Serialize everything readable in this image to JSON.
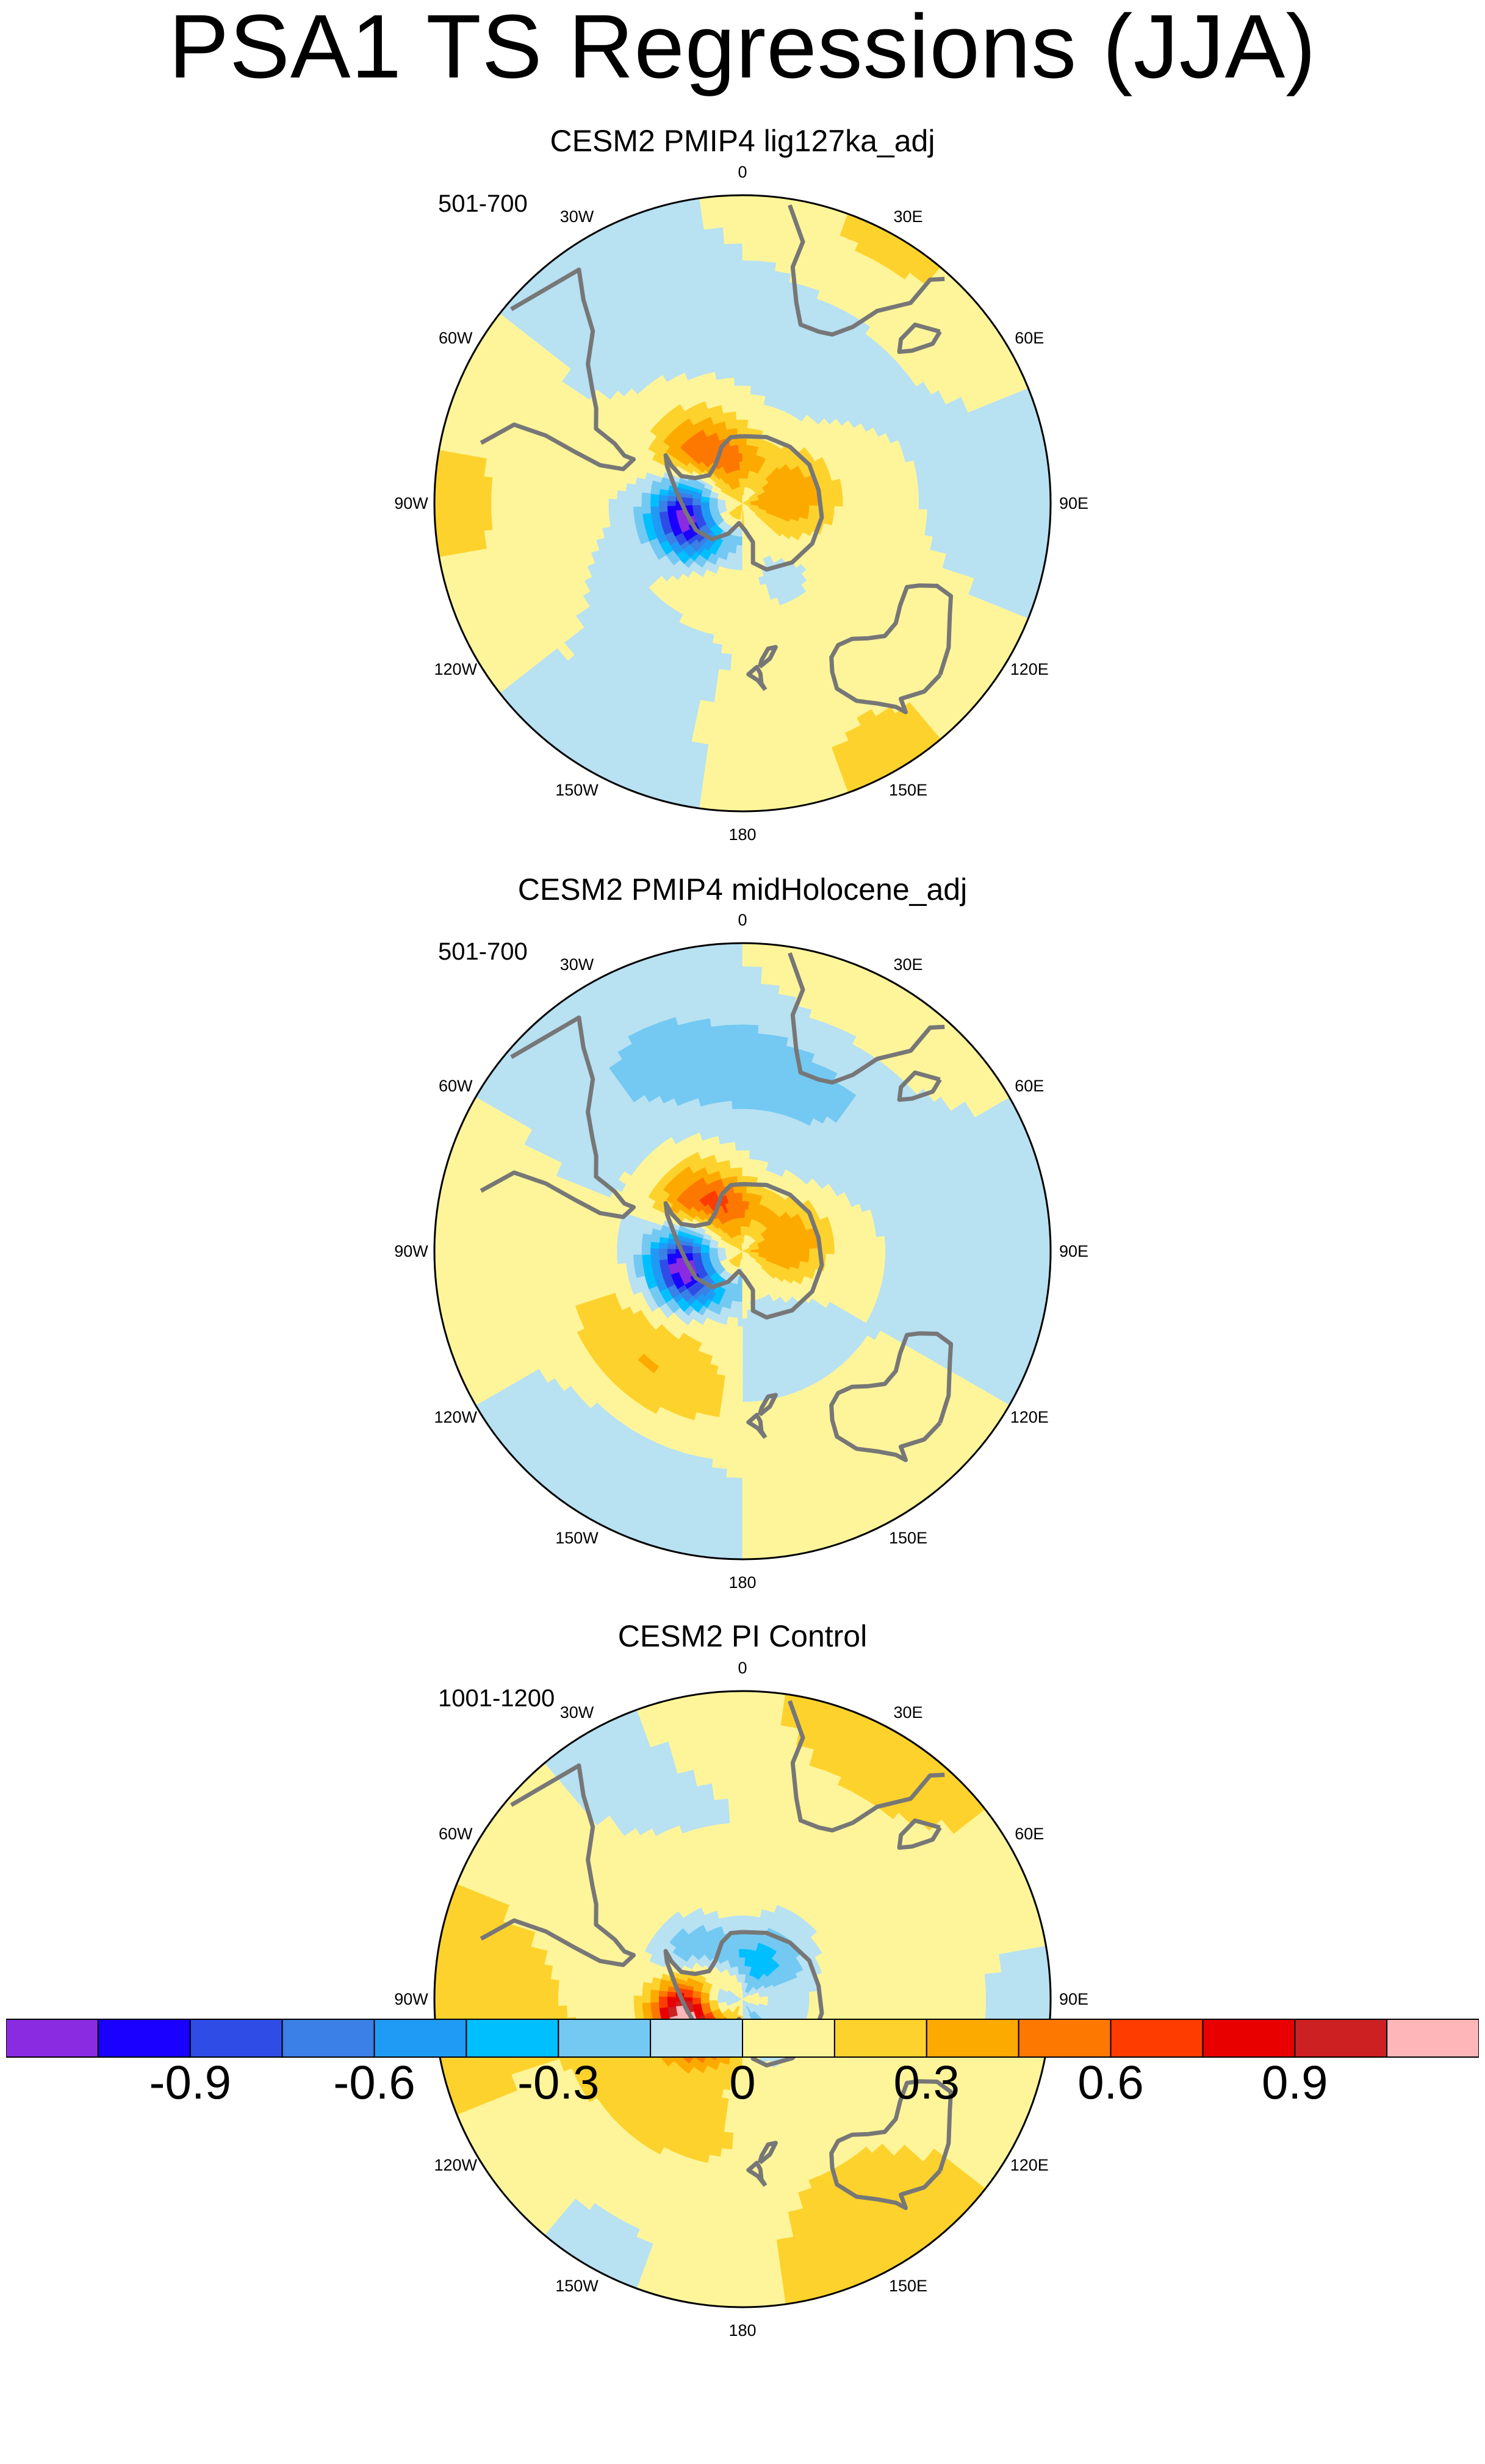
{
  "title": "PSA1 TS Regressions (JJA)",
  "panels": [
    {
      "id": "lig127ka",
      "title": "CESM2 PMIP4 lig127ka_adj",
      "years": "501-700",
      "fields": {
        "land_warm": 0.5,
        "coast_cold": -1.0,
        "far_field_base": 0.05,
        "s_pacific_belt": -0.1,
        "atlantic_cool": -0.2
      }
    },
    {
      "id": "midHolocene",
      "title": "CESM2 PMIP4 midHolocene_adj",
      "years": "501-700",
      "fields": {
        "land_warm": 0.6,
        "coast_cold": -1.0,
        "far_field_base": 0.0,
        "s_pacific_belt": 0.3,
        "atlantic_cool": -0.25
      }
    },
    {
      "id": "piControl",
      "title": "CESM2 PI Control",
      "years": "1001-1200",
      "fields": {
        "land_warm": -0.5,
        "coast_cold": 1.0,
        "far_field_base": 0.1,
        "s_pacific_belt": 0.1,
        "atlantic_cool": -0.1
      }
    }
  ],
  "lon_labels": [
    "0",
    "30E",
    "60E",
    "90E",
    "120E",
    "150E",
    "180",
    "150W",
    "120W",
    "90W",
    "60W",
    "30W"
  ],
  "colorbar": {
    "levels": [
      -1.05,
      -0.9,
      -0.75,
      -0.6,
      -0.45,
      -0.3,
      -0.15,
      0,
      0.15,
      0.3,
      0.45,
      0.6,
      0.75,
      0.9,
      1.05
    ],
    "colors": [
      "#8a2be2",
      "#1a00ff",
      "#2f4de6",
      "#3a80e6",
      "#1f9bf5",
      "#00bfff",
      "#73c9f2",
      "#b8e1f2",
      "#fef59a",
      "#fdd22c",
      "#fdaa00",
      "#fd7800",
      "#ff3c00",
      "#e80000",
      "#cc2022",
      "#ffb6b8"
    ],
    "labels": [
      "-0.9",
      "-0.6",
      "-0.3",
      "0",
      "0.3",
      "0.6",
      "0.9"
    ]
  },
  "land_outline_color": "#777777"
}
